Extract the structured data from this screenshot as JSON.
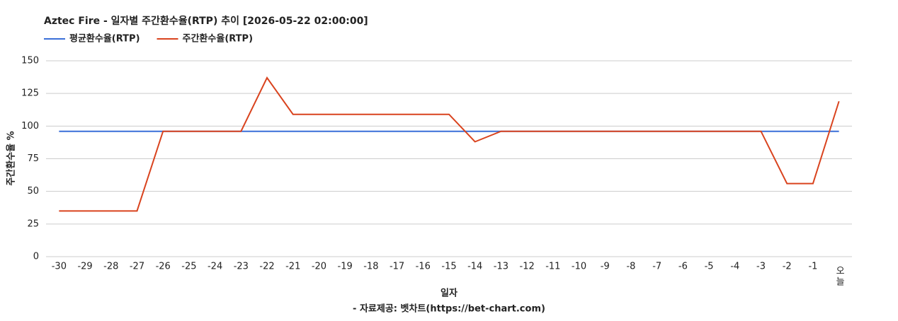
{
  "chart_data": {
    "type": "line",
    "title": "Aztec Fire - 일자별 주간환수율(RTP) 추이 [2026-05-22 02:00:00]",
    "x_label": "일자",
    "y_label": "주간환수율 %",
    "source": "- 자료제공: 벳차트(https://bet-chart.com)",
    "categories": [
      "-30",
      "-29",
      "-28",
      "-27",
      "-26",
      "-25",
      "-24",
      "-23",
      "-22",
      "-21",
      "-20",
      "-19",
      "-18",
      "-17",
      "-16",
      "-15",
      "-14",
      "-13",
      "-12",
      "-11",
      "-10",
      "-9",
      "-8",
      "-7",
      "-6",
      "-5",
      "-4",
      "-3",
      "-2",
      "-1",
      "오늘"
    ],
    "series": [
      {
        "name": "평균환수율(RTP)",
        "color": "#3a6fd8",
        "values": [
          96,
          96,
          96,
          96,
          96,
          96,
          96,
          96,
          96,
          96,
          96,
          96,
          96,
          96,
          96,
          96,
          96,
          96,
          96,
          96,
          96,
          96,
          96,
          96,
          96,
          96,
          96,
          96,
          96,
          96,
          96
        ]
      },
      {
        "name": "주간환수율(RTP)",
        "color": "#d9431e",
        "values": [
          35,
          35,
          35,
          35,
          96,
          96,
          96,
          96,
          137,
          109,
          109,
          109,
          109,
          109,
          109,
          109,
          88,
          96,
          96,
          96,
          96,
          96,
          96,
          96,
          96,
          96,
          96,
          96,
          56,
          56,
          119
        ]
      }
    ],
    "ylim": [
      0,
      150
    ],
    "yticks": [
      0,
      25,
      50,
      75,
      100,
      125,
      150
    ],
    "grid": true
  }
}
